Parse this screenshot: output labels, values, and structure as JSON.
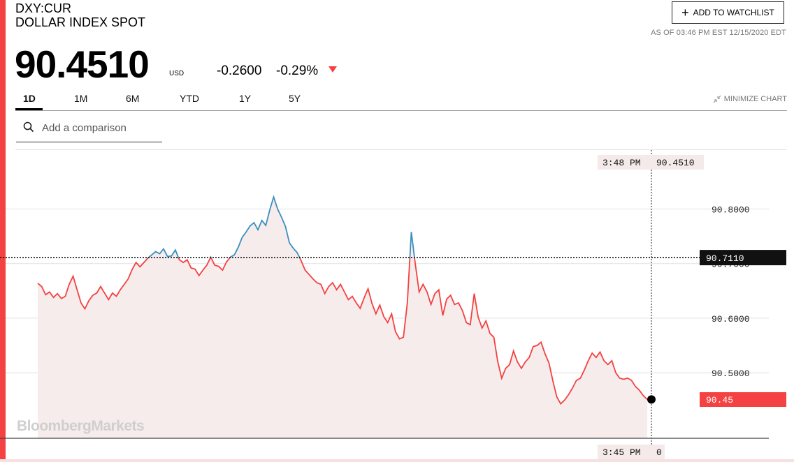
{
  "header": {
    "ticker": "DXY:CUR",
    "name": "DOLLAR INDEX SPOT",
    "watchlist_label": "ADD TO WATCHLIST",
    "as_of": "AS OF 03:46 PM EST 12/15/2020 EDT"
  },
  "quote": {
    "price": "90.4510",
    "currency": "USD",
    "change": "-0.2600",
    "change_pct": "-0.29%"
  },
  "tabs": [
    {
      "label": "1D",
      "active": true
    },
    {
      "label": "1M",
      "active": false
    },
    {
      "label": "6M",
      "active": false
    },
    {
      "label": "YTD",
      "active": false
    },
    {
      "label": "1Y",
      "active": false
    },
    {
      "label": "5Y",
      "active": false
    }
  ],
  "minimize_label": "MINIMIZE CHART",
  "search": {
    "placeholder": "Add a comparison"
  },
  "watermark": "BloombergMarkets",
  "colors": {
    "accent": "#f44141",
    "up": "#3a8fbf",
    "area": "#f7ecec",
    "crosshair": "#222222"
  },
  "chart_data": {
    "type": "line",
    "y_ticks": [
      "90.8000",
      "90.7000",
      "90.6000",
      "90.5000"
    ],
    "ylim": [
      90.395,
      90.88
    ],
    "previous_close": 90.711,
    "previous_close_label": "90.7110",
    "last_label": "90.45",
    "crosshair_time": "3:48 PM",
    "crosshair_value": "90.4510",
    "axis_time_label": "3:45 PM",
    "axis_value_label": "0",
    "series": [
      {
        "values": [
          90.664,
          90.658,
          90.643,
          90.648,
          90.638,
          90.645,
          90.636,
          90.64,
          90.662,
          90.677,
          90.652,
          90.628,
          90.617,
          90.632,
          90.642,
          90.646,
          90.658,
          90.646,
          90.634,
          90.646,
          90.64,
          90.652,
          90.662,
          90.672,
          90.689,
          90.702,
          90.694,
          90.702,
          90.71,
          90.716,
          90.722,
          90.718,
          90.727,
          90.713,
          90.714,
          90.725,
          90.707,
          90.702,
          90.707,
          90.692,
          90.69,
          90.678,
          90.688,
          90.697,
          90.712,
          90.697,
          90.695,
          90.688,
          90.703,
          90.712,
          90.716,
          90.73,
          90.748,
          90.758,
          90.769,
          90.775,
          90.762,
          90.779,
          90.77,
          90.798,
          90.822,
          90.8,
          90.785,
          90.768,
          90.738,
          90.728,
          90.72,
          90.705,
          90.688,
          90.68,
          90.672,
          90.665,
          90.662,
          90.645,
          90.658,
          90.665,
          90.652,
          90.662,
          90.648,
          90.634,
          90.64,
          90.628,
          90.618,
          90.637,
          90.654,
          90.627,
          90.608,
          90.624,
          90.603,
          90.592,
          90.608,
          90.575,
          90.562,
          90.565,
          90.628,
          90.758,
          90.7,
          90.648,
          90.662,
          90.648,
          90.625,
          90.645,
          90.652,
          90.605,
          90.635,
          90.642,
          90.625,
          90.628,
          90.614,
          90.592,
          90.588,
          90.645,
          90.602,
          90.582,
          90.595,
          90.572,
          90.565,
          90.52,
          90.49,
          90.508,
          90.515,
          90.54,
          90.52,
          90.508,
          90.52,
          90.528,
          90.548,
          90.55,
          90.556,
          90.535,
          90.518,
          90.485,
          90.456,
          90.443,
          90.45,
          90.46,
          90.472,
          90.486,
          90.49,
          90.505,
          90.522,
          90.536,
          90.528,
          90.538,
          90.522,
          90.515,
          90.522,
          90.5,
          90.49,
          90.488,
          90.49,
          90.486,
          90.475,
          90.468,
          90.458,
          90.451
        ]
      }
    ]
  }
}
